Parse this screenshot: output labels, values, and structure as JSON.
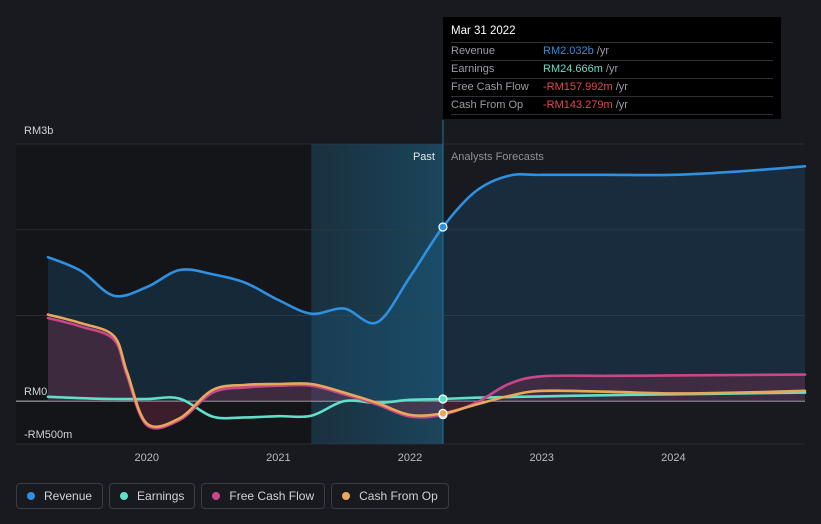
{
  "tooltip": {
    "date": "Mar 31 2022",
    "rows": [
      {
        "label": "Revenue",
        "value": "RM2.032b",
        "unit": "/yr",
        "color": "#2f8fe0"
      },
      {
        "label": "Earnings",
        "value": "RM24.666m",
        "unit": "/yr",
        "color": "#5fe0c8"
      },
      {
        "label": "Free Cash Flow",
        "value": "-RM157.992m",
        "unit": "/yr",
        "color": "#e8474f"
      },
      {
        "label": "Cash From Op",
        "value": "-RM143.279m",
        "unit": "/yr",
        "color": "#e8474f"
      }
    ]
  },
  "labels": {
    "past": "Past",
    "forecast": "Analysts Forecasts"
  },
  "legend": [
    {
      "label": "Revenue",
      "color": "#2f8fe0"
    },
    {
      "label": "Earnings",
      "color": "#5fe0c8"
    },
    {
      "label": "Free Cash Flow",
      "color": "#c8478a"
    },
    {
      "label": "Cash From Op",
      "color": "#e8a85a"
    }
  ],
  "chart_data": {
    "type": "line",
    "ylim": [
      -500,
      3000
    ],
    "y_ticks": [
      {
        "value": 3000,
        "label": "RM3b"
      },
      {
        "value": 0,
        "label": "RM0"
      },
      {
        "value": -500,
        "label": "-RM500m"
      }
    ],
    "xlim": [
      2019.25,
      2025.0
    ],
    "x_ticks": [
      {
        "value": 2020,
        "label": "2020"
      },
      {
        "value": 2021,
        "label": "2021"
      },
      {
        "value": 2022,
        "label": "2022"
      },
      {
        "value": 2023,
        "label": "2023"
      },
      {
        "value": 2024,
        "label": "2024"
      }
    ],
    "highlight_start": 2021.25,
    "past_end": 2022.25,
    "series": [
      {
        "name": "Revenue",
        "color": "#2f8fe0",
        "fill": true,
        "x": [
          2019.25,
          2019.5,
          2019.75,
          2020.0,
          2020.25,
          2020.5,
          2020.75,
          2021.0,
          2021.25,
          2021.5,
          2021.75,
          2022.0,
          2022.25,
          2022.5,
          2022.75,
          2023.0,
          2023.5,
          2024.0,
          2024.5,
          2025.0
        ],
        "y": [
          1680,
          1520,
          1230,
          1330,
          1530,
          1480,
          1380,
          1180,
          1020,
          1080,
          920,
          1450,
          2032,
          2450,
          2630,
          2640,
          2640,
          2640,
          2680,
          2740
        ]
      },
      {
        "name": "Earnings",
        "color": "#5fe0c8",
        "fill": false,
        "x": [
          2019.25,
          2019.5,
          2019.75,
          2020.0,
          2020.25,
          2020.5,
          2020.75,
          2021.0,
          2021.25,
          2021.5,
          2021.75,
          2022.0,
          2022.25,
          2022.5,
          2023.0,
          2023.5,
          2024.0,
          2024.5,
          2025.0
        ],
        "y": [
          50,
          35,
          25,
          25,
          30,
          -180,
          -190,
          -175,
          -170,
          0,
          -20,
          15,
          25,
          40,
          55,
          70,
          80,
          90,
          100
        ]
      },
      {
        "name": "Free Cash Flow",
        "color": "#c8478a",
        "fill": true,
        "x": [
          2019.25,
          2019.5,
          2019.75,
          2019.85,
          2020.0,
          2020.25,
          2020.5,
          2020.75,
          2021.0,
          2021.25,
          2021.5,
          2021.75,
          2022.0,
          2022.25,
          2022.5,
          2022.75,
          2023.0,
          2023.5,
          2024.0,
          2024.5,
          2025.0
        ],
        "y": [
          970,
          870,
          720,
          300,
          -280,
          -220,
          100,
          160,
          180,
          180,
          80,
          -40,
          -180,
          -158,
          -20,
          200,
          290,
          295,
          300,
          305,
          310
        ]
      },
      {
        "name": "Cash From Op",
        "color": "#e8a85a",
        "fill": false,
        "x": [
          2019.25,
          2019.5,
          2019.75,
          2019.85,
          2020.0,
          2020.25,
          2020.5,
          2020.75,
          2021.0,
          2021.25,
          2021.5,
          2021.75,
          2022.0,
          2022.25,
          2022.5,
          2022.75,
          2023.0,
          2023.5,
          2024.0,
          2024.5,
          2025.0
        ],
        "y": [
          1010,
          910,
          760,
          340,
          -260,
          -200,
          130,
          190,
          200,
          200,
          100,
          -20,
          -160,
          -143,
          -40,
          60,
          120,
          110,
          90,
          100,
          120
        ]
      }
    ]
  }
}
